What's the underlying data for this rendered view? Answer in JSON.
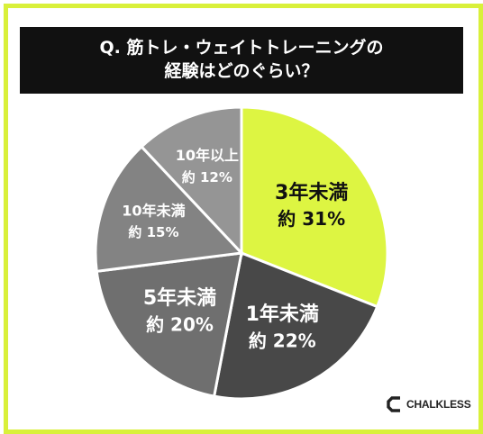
{
  "title": {
    "line1": "Q. 筋トレ・ウェイトトレーニングの",
    "line2": "経験はどのぐらい？"
  },
  "brand": {
    "name": "CHALKLESS"
  },
  "colors": {
    "frame": "#d9f03a",
    "title_bg": "#111111",
    "slice_highlight": "#ddf542",
    "slice_dark": "#484848",
    "slice_mid": "#6f6f6f",
    "slice_mid_light": "#838383",
    "slice_light": "#959595"
  },
  "chart_data": {
    "type": "pie",
    "unit": "%",
    "slices": [
      {
        "label": "3年未満",
        "value_text": "約 31%",
        "value": 31,
        "color": "#ddf542",
        "text_color": "#111111"
      },
      {
        "label": "1年未満",
        "value_text": "約 22%",
        "value": 22,
        "color": "#484848",
        "text_color": "#ffffff"
      },
      {
        "label": "5年未満",
        "value_text": "約 20%",
        "value": 20,
        "color": "#6f6f6f",
        "text_color": "#ffffff"
      },
      {
        "label": "10年未満",
        "value_text": "約 15%",
        "value": 15,
        "color": "#838383",
        "text_color": "#ffffff"
      },
      {
        "label": "10年以上",
        "value_text": "約 12%",
        "value": 12,
        "color": "#959595",
        "text_color": "#ffffff"
      }
    ]
  }
}
